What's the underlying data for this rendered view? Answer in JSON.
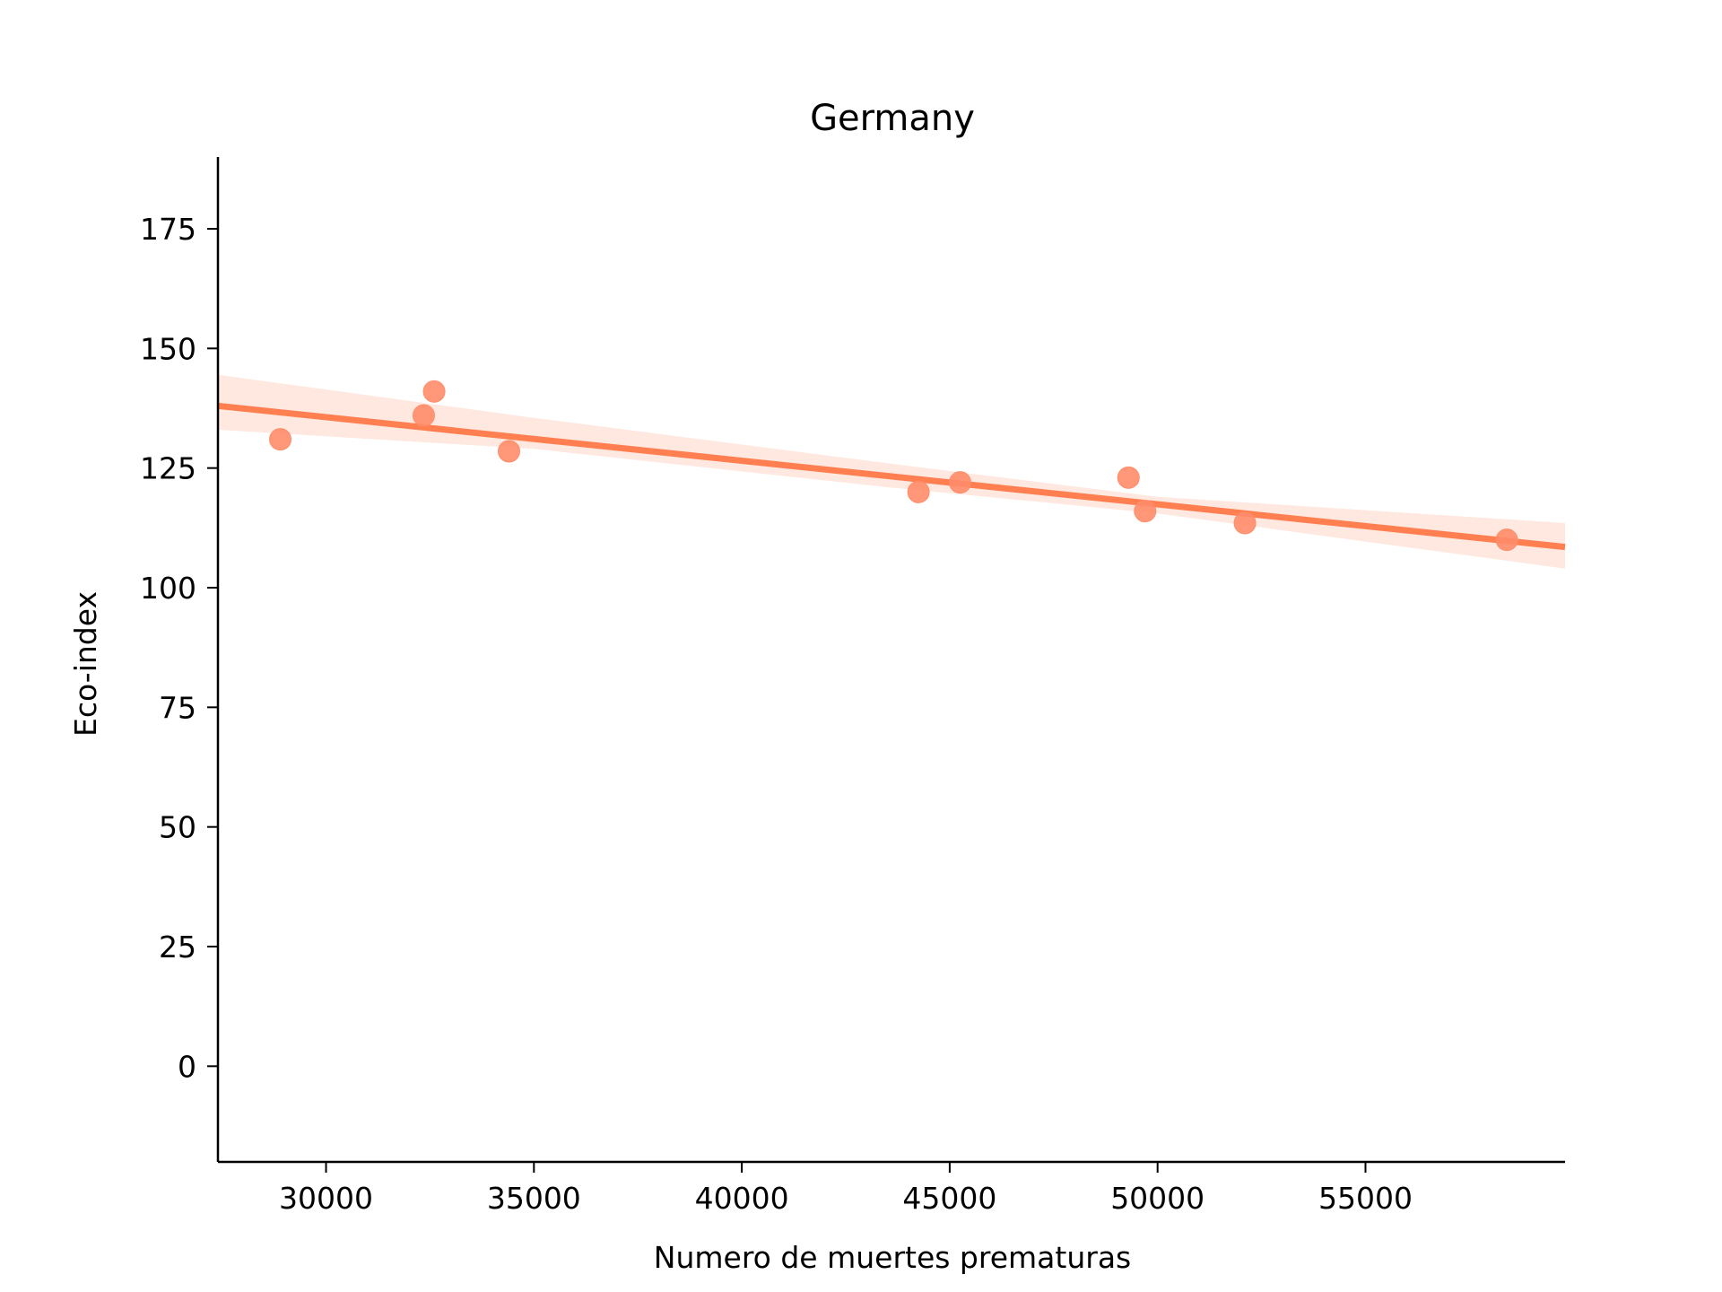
{
  "chart_data": {
    "type": "scatter",
    "title": "Germany",
    "xlabel": "Numero de muertes prematuras",
    "ylabel": "Eco-index",
    "xlim": [
      27400,
      59800
    ],
    "ylim": [
      -20,
      190
    ],
    "xticks": [
      30000,
      35000,
      40000,
      45000,
      50000,
      55000
    ],
    "xtick_labels": [
      "30000",
      "35000",
      "40000",
      "45000",
      "50000",
      "55000"
    ],
    "yticks": [
      0,
      25,
      50,
      75,
      100,
      125,
      150,
      175
    ],
    "ytick_labels": [
      "0",
      "25",
      "50",
      "75",
      "100",
      "125",
      "150",
      "175"
    ],
    "grid": false,
    "series": [
      {
        "points": [
          {
            "x": 28900,
            "y": 131
          },
          {
            "x": 32350,
            "y": 136
          },
          {
            "x": 32600,
            "y": 141
          },
          {
            "x": 34400,
            "y": 128.5
          },
          {
            "x": 44250,
            "y": 120
          },
          {
            "x": 45250,
            "y": 122
          },
          {
            "x": 49300,
            "y": 123
          },
          {
            "x": 49700,
            "y": 116
          },
          {
            "x": 52100,
            "y": 113.5
          },
          {
            "x": 58400,
            "y": 110
          }
        ]
      }
    ],
    "regression": {
      "x": [
        27400,
        59800
      ],
      "y": [
        138,
        108.5
      ],
      "ci_upper": [
        [
          27400,
          144.5
        ],
        [
          35000,
          135.5
        ],
        [
          43500,
          126
        ],
        [
          50000,
          119
        ],
        [
          59800,
          113.5
        ]
      ],
      "ci_lower": [
        [
          59800,
          104
        ],
        [
          50000,
          115.5
        ],
        [
          43500,
          121
        ],
        [
          35000,
          129
        ],
        [
          27400,
          133
        ]
      ]
    },
    "colors": {
      "points": "#FF8C69",
      "line": "#FF7F50",
      "band": "#FFE4DB",
      "axis": "#000000"
    }
  }
}
